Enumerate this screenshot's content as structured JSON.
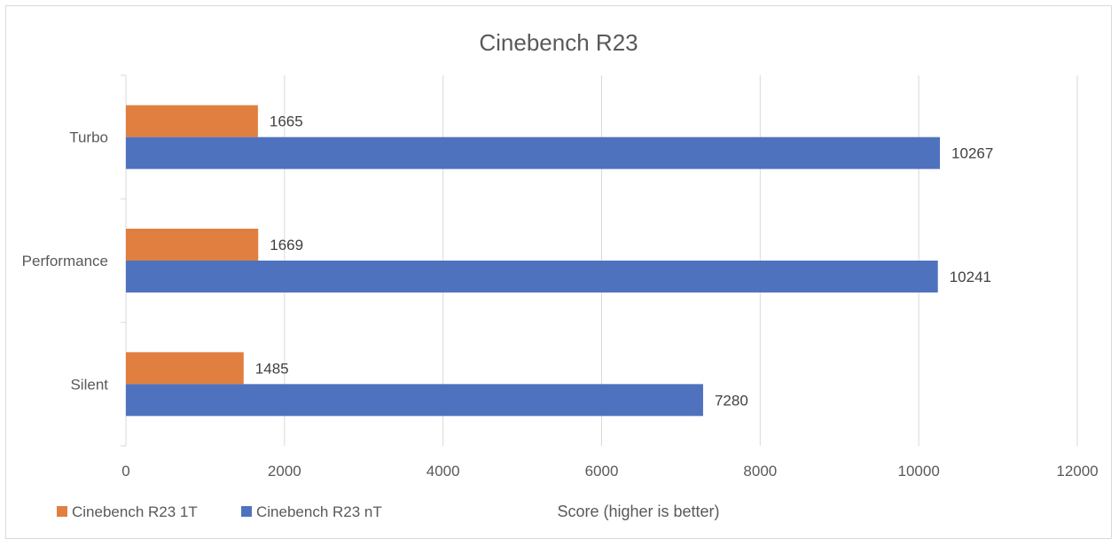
{
  "chart_data": {
    "type": "bar",
    "orientation": "horizontal",
    "title": "Cinebench R23",
    "xlabel": "Score (higher is better)",
    "ylabel": "",
    "categories": [
      "Turbo",
      "Performance",
      "Silent"
    ],
    "series": [
      {
        "name": "Cinebench R23 1T",
        "values": [
          1665,
          1669,
          1485
        ]
      },
      {
        "name": "Cinebench R23 nT",
        "values": [
          10267,
          10241,
          7280
        ]
      }
    ],
    "xlim": [
      0,
      12000
    ],
    "x_ticks": [
      "0",
      "2000",
      "4000",
      "6000",
      "8000",
      "10000",
      "12000"
    ],
    "grid": true,
    "legend_position": "bottom-left",
    "colors": {
      "series_1": "#e07f3f",
      "series_2": "#4f72bf",
      "grid": "#d9d9d9",
      "text": "#595959"
    }
  }
}
